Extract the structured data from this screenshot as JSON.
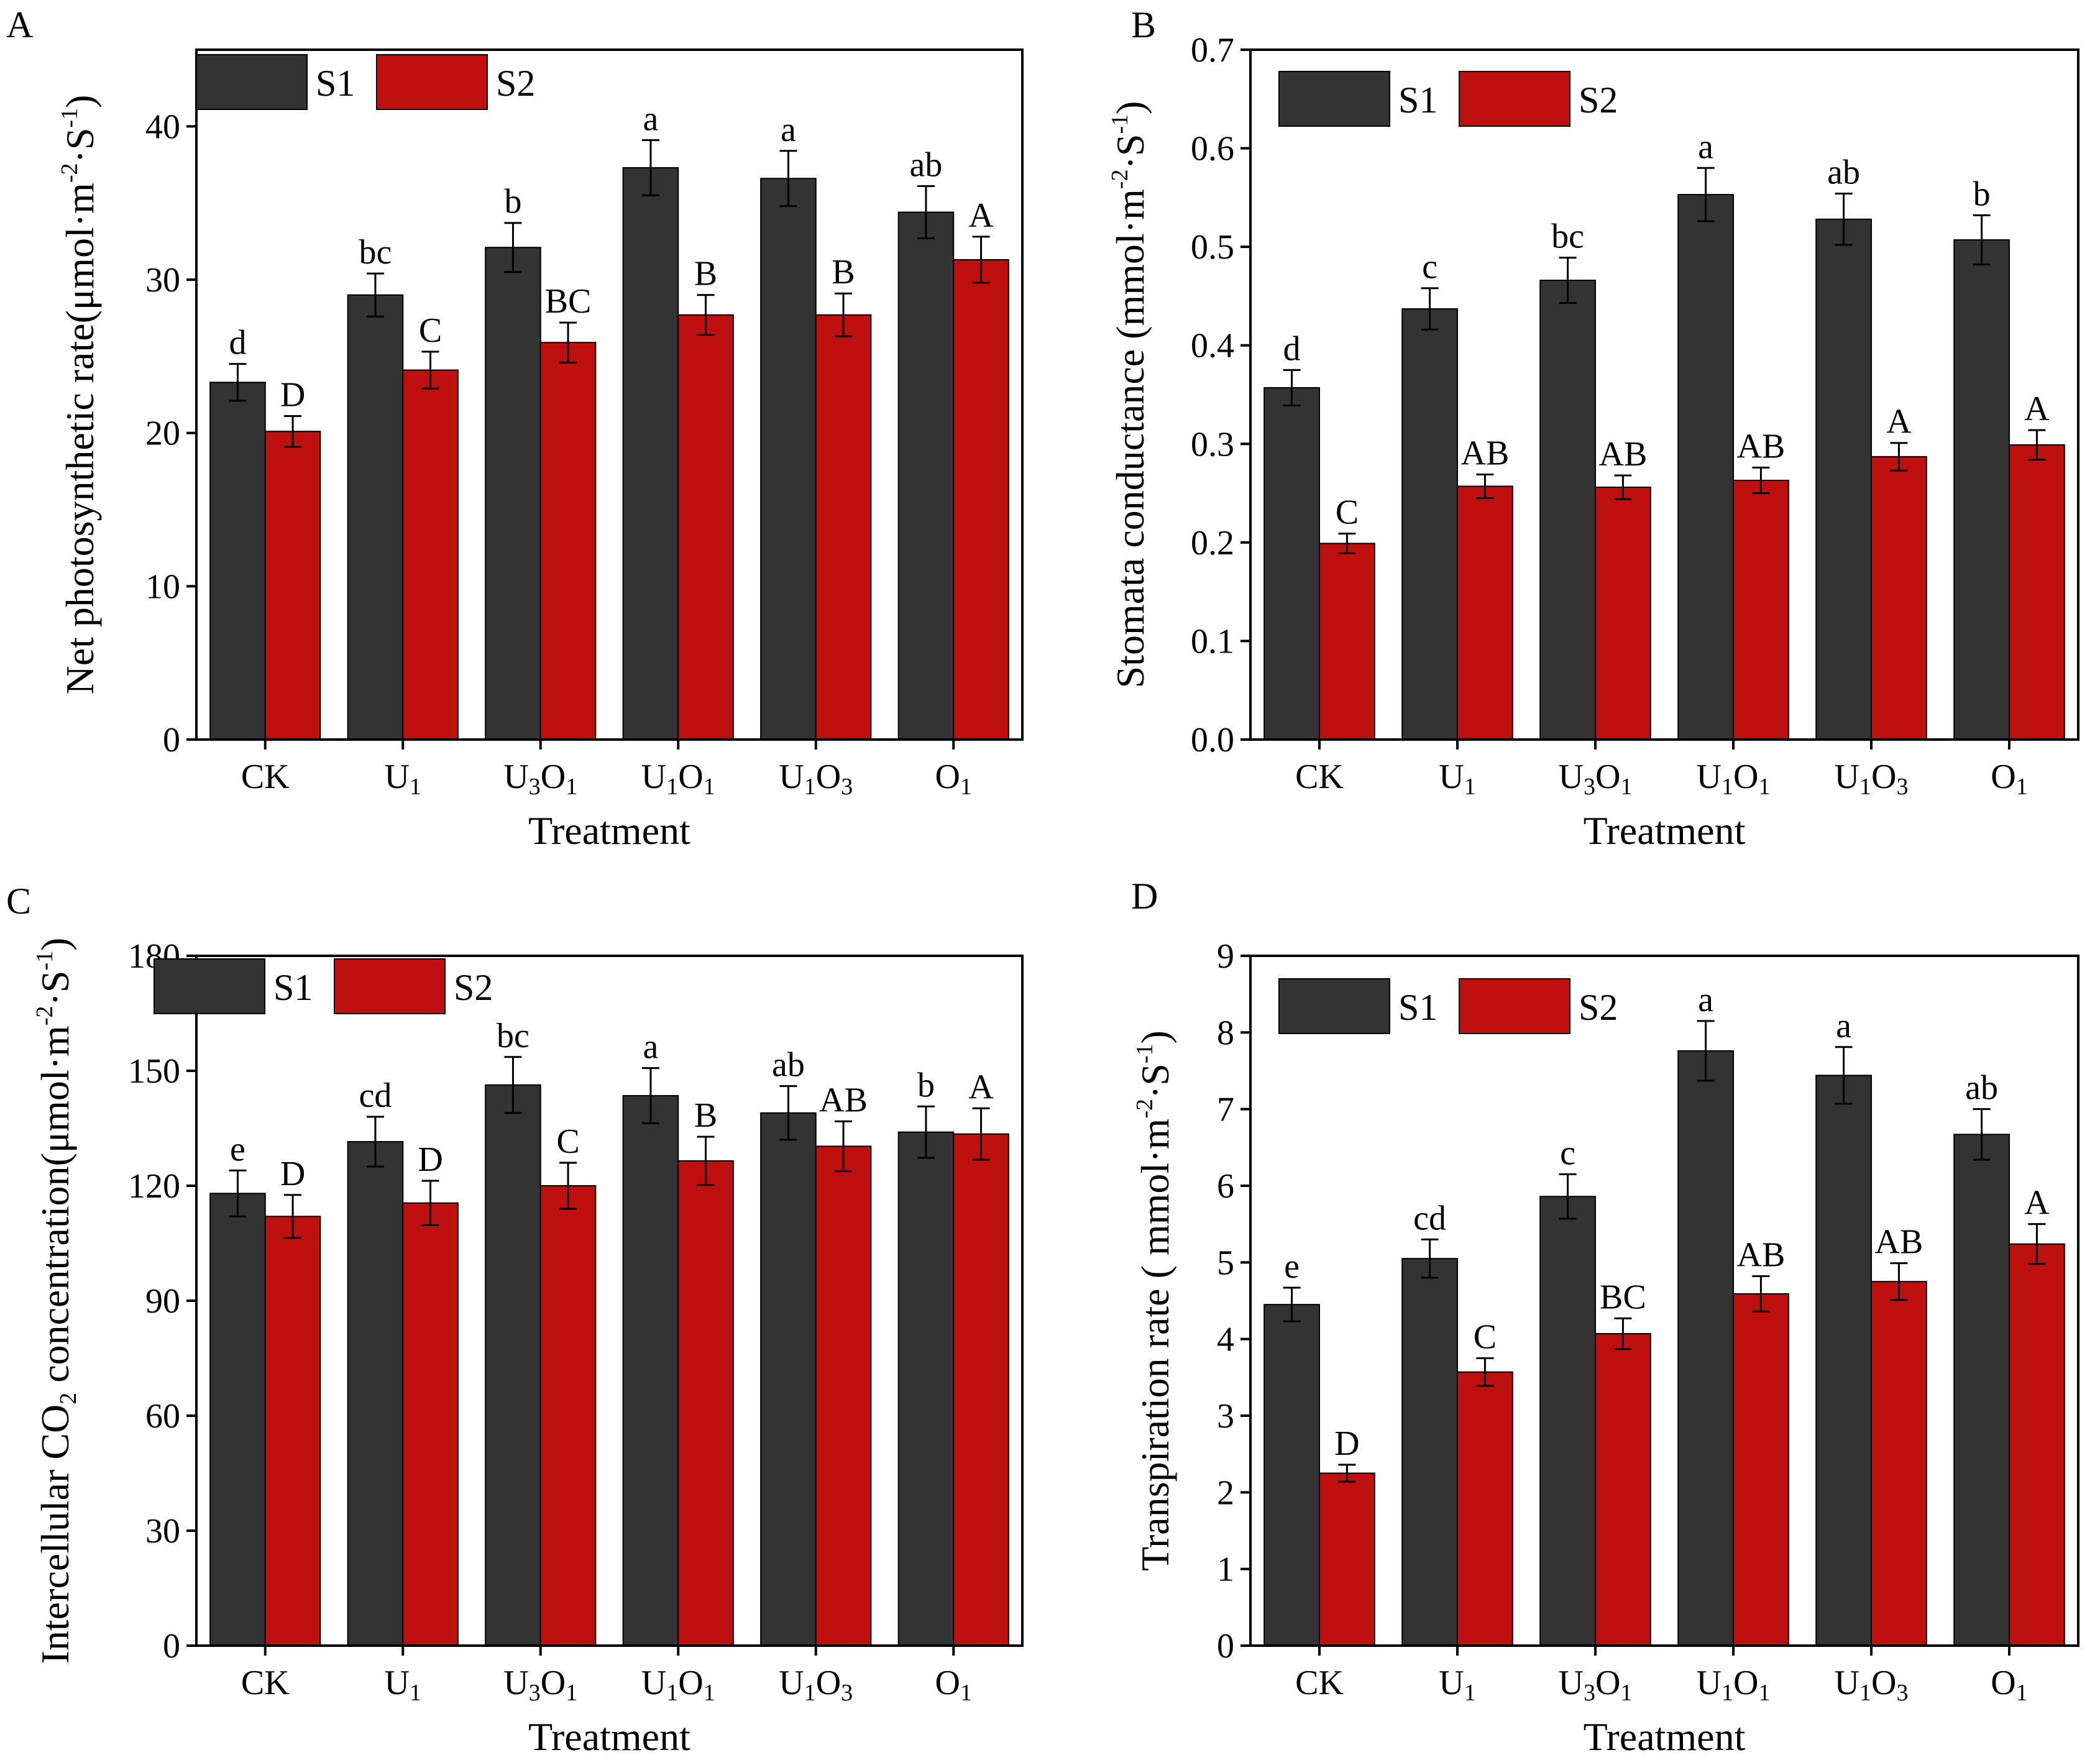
{
  "figure": {
    "colors": {
      "S1": "#333333",
      "S2": "#bf1010",
      "frame": "#000000",
      "error_bar": "#000000"
    }
  },
  "chart_data": [
    {
      "panel": "A",
      "type": "bar",
      "xlabel": "Treatment",
      "ylabel": "Net photosynthetic rate(μmol·m⁻²·S⁻¹)",
      "ylim": [
        0,
        45
      ],
      "yticks": [
        0,
        10,
        20,
        30,
        40
      ],
      "categories": [
        "CK",
        "U₁",
        "U₃O₁",
        "U₁O₁",
        "U₁O₃",
        "O₁"
      ],
      "legend": [
        "S1",
        "S2"
      ],
      "series": [
        {
          "name": "S1",
          "values": [
            23.3,
            29.0,
            32.1,
            37.3,
            36.6,
            34.4
          ],
          "errors": [
            1.2,
            1.4,
            1.6,
            1.8,
            1.8,
            1.7
          ],
          "labels": [
            "d",
            "bc",
            "b",
            "a",
            "a",
            "ab"
          ]
        },
        {
          "name": "S2",
          "values": [
            20.1,
            24.1,
            25.9,
            27.7,
            27.7,
            31.3
          ],
          "errors": [
            1.0,
            1.2,
            1.3,
            1.3,
            1.4,
            1.5
          ],
          "labels": [
            "D",
            "C",
            "BC",
            "B",
            "B",
            "A"
          ]
        }
      ]
    },
    {
      "panel": "B",
      "type": "bar",
      "xlabel": "Treatment",
      "ylabel": "Stomata conductance (mmol·m⁻²·S⁻¹)",
      "ylim": [
        0,
        0.7
      ],
      "yticks": [
        "0.0",
        "0.1",
        "0.2",
        "0.3",
        "0.4",
        "0.5",
        "0.6",
        "0.7"
      ],
      "categories": [
        "CK",
        "U₁",
        "U₃O₁",
        "U₁O₁",
        "U₁O₃",
        "O₁"
      ],
      "legend": [
        "S1",
        "S2"
      ],
      "series": [
        {
          "name": "S1",
          "values": [
            0.357,
            0.437,
            0.466,
            0.553,
            0.528,
            0.507
          ],
          "errors": [
            0.018,
            0.021,
            0.023,
            0.027,
            0.026,
            0.025
          ],
          "labels": [
            "d",
            "c",
            "bc",
            "a",
            "ab",
            "b"
          ]
        },
        {
          "name": "S2",
          "values": [
            0.199,
            0.257,
            0.256,
            0.263,
            0.287,
            0.299
          ],
          "errors": [
            0.01,
            0.012,
            0.012,
            0.013,
            0.014,
            0.015
          ],
          "labels": [
            "C",
            "AB",
            "AB",
            "AB",
            "A",
            "A"
          ]
        }
      ]
    },
    {
      "panel": "C",
      "type": "bar",
      "xlabel": "Treatment",
      "ylabel": "Intercellular CO₂ concentration(μmol·m⁻²·S⁻¹)",
      "ylim": [
        0,
        180
      ],
      "yticks": [
        0,
        30,
        60,
        90,
        120,
        150,
        180
      ],
      "categories": [
        "CK",
        "U₁",
        "U₃O₁",
        "U₁O₁",
        "U₁O₃",
        "O₁"
      ],
      "legend": [
        "S1",
        "S2"
      ],
      "series": [
        {
          "name": "S1",
          "values": [
            118,
            131.5,
            146.3,
            143.5,
            139,
            134
          ],
          "errors": [
            6,
            6.5,
            7.3,
            7.2,
            7,
            6.7
          ],
          "labels": [
            "e",
            "cd",
            "bc",
            "a",
            "ab",
            "b"
          ]
        },
        {
          "name": "S2",
          "values": [
            112,
            115.5,
            120,
            126.5,
            130.3,
            133.5
          ],
          "errors": [
            5.6,
            5.8,
            6,
            6.3,
            6.5,
            6.7
          ],
          "labels": [
            "D",
            "D",
            "C",
            "B",
            "AB",
            "A"
          ]
        }
      ]
    },
    {
      "panel": "D",
      "type": "bar",
      "xlabel": "Treatment",
      "ylabel": "Transpiration rate ( mmol·m⁻²·S⁻¹)",
      "ylim": [
        0,
        9
      ],
      "yticks": [
        0,
        1,
        2,
        3,
        4,
        5,
        6,
        7,
        8,
        9
      ],
      "categories": [
        "CK",
        "U₁",
        "U₃O₁",
        "U₁O₁",
        "U₁O₃",
        "O₁"
      ],
      "legend": [
        "S1",
        "S2"
      ],
      "series": [
        {
          "name": "S1",
          "values": [
            4.45,
            5.05,
            5.86,
            7.76,
            7.44,
            6.67
          ],
          "errors": [
            0.22,
            0.25,
            0.29,
            0.39,
            0.37,
            0.33
          ],
          "labels": [
            "e",
            "cd",
            "c",
            "a",
            "a",
            "ab"
          ]
        },
        {
          "name": "S2",
          "values": [
            2.25,
            3.57,
            4.07,
            4.59,
            4.75,
            5.24
          ],
          "errors": [
            0.11,
            0.18,
            0.2,
            0.23,
            0.24,
            0.26
          ],
          "labels": [
            "D",
            "C",
            "BC",
            "AB",
            "AB",
            "A"
          ]
        }
      ]
    }
  ]
}
